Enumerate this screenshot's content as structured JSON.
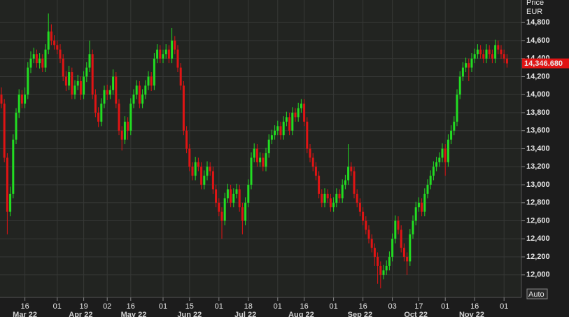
{
  "chart_data": {
    "type": "candlestick",
    "axis_title": "Price",
    "unit": "EUR",
    "up_color": "#22dd22",
    "down_color": "#e01414",
    "ylim": [
      11750,
      15050
    ],
    "yticks": [
      {
        "value": 12000,
        "label": "12,000"
      },
      {
        "value": 12200,
        "label": "12,200"
      },
      {
        "value": 12400,
        "label": "12,400"
      },
      {
        "value": 12600,
        "label": "12,600"
      },
      {
        "value": 12800,
        "label": "12,800"
      },
      {
        "value": 13000,
        "label": "13,000"
      },
      {
        "value": 13200,
        "label": "13,200"
      },
      {
        "value": 13400,
        "label": "13,400"
      },
      {
        "value": 13600,
        "label": "13,600"
      },
      {
        "value": 13800,
        "label": "13,800"
      },
      {
        "value": 14000,
        "label": "14,000"
      },
      {
        "value": 14200,
        "label": "14,200"
      },
      {
        "value": 14400,
        "label": "14,400"
      },
      {
        "value": 14600,
        "label": "14,600"
      },
      {
        "value": 14800,
        "label": "14,800"
      }
    ],
    "grid": true,
    "last_price": 14346.68,
    "last_price_label": "14,346.680",
    "scale_button": "Auto",
    "categories": [
      null,
      null,
      null,
      null,
      null,
      null,
      null,
      null,
      "16",
      null,
      null,
      null,
      null,
      null,
      null,
      null,
      null,
      null,
      null,
      "01",
      null,
      null,
      null,
      null,
      null,
      null,
      null,
      null,
      "19",
      null,
      null,
      null,
      null,
      null,
      null,
      null,
      "02",
      null,
      null,
      null,
      null,
      null,
      null,
      null,
      "16",
      null,
      null,
      null,
      null,
      null,
      null,
      null,
      null,
      null,
      null,
      "01",
      null,
      null,
      null,
      null,
      null,
      null,
      null,
      null,
      "15",
      null,
      null,
      null,
      null,
      null,
      null,
      null,
      null,
      null,
      "01",
      null,
      null,
      null,
      null,
      null,
      null,
      null,
      null,
      null,
      "18",
      null,
      null,
      null,
      null,
      null,
      null,
      null,
      null,
      null,
      "01",
      null,
      null,
      null,
      null,
      null,
      null,
      null,
      null,
      "16",
      null,
      null,
      null,
      null,
      null,
      null,
      null,
      null,
      null,
      "01",
      null,
      null,
      null,
      null,
      null,
      null,
      null,
      null,
      null,
      "16",
      null,
      null,
      null,
      null,
      null,
      null,
      null,
      null,
      null,
      "03",
      null,
      null,
      null,
      null,
      null,
      null,
      null,
      null,
      "17",
      null,
      null,
      null,
      null,
      null,
      null,
      null,
      null,
      "01",
      null,
      null,
      null,
      null,
      null,
      null,
      null,
      null,
      null,
      "16",
      null,
      null,
      null,
      null,
      null,
      null,
      null,
      null,
      null,
      "01",
      null
    ],
    "months": [
      {
        "label": "Mar 22",
        "category": 8
      },
      {
        "label": "Apr 22",
        "category": 27
      },
      {
        "label": "May 22",
        "category": 45
      },
      {
        "label": "Jun 22",
        "category": 64
      },
      {
        "label": "Jul 22",
        "category": 83
      },
      {
        "label": "Aug 22",
        "category": 102
      },
      {
        "label": "Sep 22",
        "category": 122
      },
      {
        "label": "Oct 22",
        "category": 141
      },
      {
        "label": "Nov 22",
        "category": 160
      }
    ],
    "ohlc": [
      [
        14000,
        14080,
        13850,
        13900
      ],
      [
        13900,
        13950,
        13250,
        13300
      ],
      [
        13300,
        13350,
        12450,
        12700
      ],
      [
        12700,
        12980,
        12650,
        12900
      ],
      [
        12900,
        13560,
        12850,
        13500
      ],
      [
        13500,
        13850,
        13450,
        13800
      ],
      [
        13800,
        14060,
        13740,
        14000
      ],
      [
        14000,
        14050,
        13850,
        13900
      ],
      [
        13900,
        14080,
        13850,
        14000
      ],
      [
        14000,
        14360,
        13950,
        14300
      ],
      [
        14300,
        14480,
        14240,
        14400
      ],
      [
        14400,
        14520,
        14350,
        14450
      ],
      [
        14450,
        14500,
        14300,
        14350
      ],
      [
        14350,
        14460,
        14290,
        14400
      ],
      [
        14400,
        14450,
        14250,
        14300
      ],
      [
        14300,
        14560,
        14250,
        14500
      ],
      [
        14500,
        14900,
        14450,
        14700
      ],
      [
        14700,
        14780,
        14550,
        14600
      ],
      [
        14600,
        14660,
        14500,
        14550
      ],
      [
        14550,
        14600,
        14450,
        14500
      ],
      [
        14500,
        14560,
        14350,
        14400
      ],
      [
        14400,
        14450,
        14150,
        14200
      ],
      [
        14200,
        14260,
        14040,
        14100
      ],
      [
        14100,
        14320,
        14050,
        14250
      ],
      [
        14250,
        14300,
        13950,
        14000
      ],
      [
        14000,
        14160,
        13950,
        14100
      ],
      [
        14100,
        14220,
        14050,
        14150
      ],
      [
        14150,
        14200,
        13940,
        14000
      ],
      [
        14000,
        14260,
        13950,
        14200
      ],
      [
        14200,
        14360,
        14140,
        14300
      ],
      [
        14300,
        14600,
        14250,
        14450
      ],
      [
        14450,
        14500,
        13950,
        14000
      ],
      [
        14000,
        14060,
        13750,
        13800
      ],
      [
        13800,
        13860,
        13640,
        13700
      ],
      [
        13700,
        13960,
        13650,
        13900
      ],
      [
        13900,
        14100,
        13850,
        14050
      ],
      [
        14050,
        14110,
        13940,
        14000
      ],
      [
        14000,
        14100,
        13950,
        14050
      ],
      [
        14050,
        14280,
        14000,
        14200
      ],
      [
        14200,
        14250,
        13850,
        13900
      ],
      [
        13900,
        13950,
        13550,
        13600
      ],
      [
        13600,
        13650,
        13380,
        13500
      ],
      [
        13500,
        13760,
        13450,
        13700
      ],
      [
        13700,
        13750,
        13500,
        13600
      ],
      [
        13600,
        13960,
        13550,
        13900
      ],
      [
        13900,
        14060,
        13850,
        14000
      ],
      [
        14000,
        14160,
        13950,
        14100
      ],
      [
        14100,
        14150,
        13850,
        13900
      ],
      [
        13900,
        14060,
        13850,
        14000
      ],
      [
        14000,
        14160,
        13950,
        14100
      ],
      [
        14100,
        14260,
        14050,
        14200
      ],
      [
        14200,
        14250,
        14040,
        14100
      ],
      [
        14100,
        14460,
        14050,
        14400
      ],
      [
        14400,
        14560,
        14350,
        14500
      ],
      [
        14500,
        14550,
        14350,
        14400
      ],
      [
        14400,
        14500,
        14350,
        14450
      ],
      [
        14450,
        14560,
        14400,
        14500
      ],
      [
        14500,
        14550,
        14350,
        14400
      ],
      [
        14400,
        14740,
        14350,
        14600
      ],
      [
        14600,
        14650,
        14450,
        14500
      ],
      [
        14500,
        14550,
        14250,
        14300
      ],
      [
        14300,
        14350,
        14050,
        14100
      ],
      [
        14100,
        14150,
        13550,
        13600
      ],
      [
        13600,
        13650,
        13350,
        13400
      ],
      [
        13400,
        13450,
        13150,
        13200
      ],
      [
        13200,
        13250,
        13050,
        13100
      ],
      [
        13100,
        13310,
        13050,
        13250
      ],
      [
        13250,
        13300,
        13150,
        13200
      ],
      [
        13200,
        13250,
        12950,
        13000
      ],
      [
        13000,
        13160,
        12950,
        13100
      ],
      [
        13100,
        13260,
        13050,
        13200
      ],
      [
        13200,
        13250,
        13100,
        13150
      ],
      [
        13150,
        13200,
        12900,
        12950
      ],
      [
        12950,
        13000,
        12750,
        12800
      ],
      [
        12800,
        12850,
        12650,
        12700
      ],
      [
        12700,
        12750,
        12400,
        12600
      ],
      [
        12600,
        12910,
        12550,
        12850
      ],
      [
        12850,
        13010,
        12800,
        12950
      ],
      [
        12950,
        13000,
        12750,
        12800
      ],
      [
        12800,
        12960,
        12750,
        12900
      ],
      [
        12900,
        13010,
        12850,
        12950
      ],
      [
        12950,
        13000,
        12700,
        12750
      ],
      [
        12750,
        12800,
        12450,
        12600
      ],
      [
        12600,
        12860,
        12550,
        12800
      ],
      [
        12800,
        13060,
        12750,
        13000
      ],
      [
        13000,
        13360,
        12950,
        13300
      ],
      [
        13300,
        13460,
        13250,
        13400
      ],
      [
        13400,
        13450,
        13200,
        13250
      ],
      [
        13250,
        13360,
        13200,
        13300
      ],
      [
        13300,
        13350,
        13150,
        13200
      ],
      [
        13200,
        13410,
        13150,
        13350
      ],
      [
        13350,
        13560,
        13300,
        13500
      ],
      [
        13500,
        13610,
        13450,
        13550
      ],
      [
        13550,
        13660,
        13500,
        13600
      ],
      [
        13600,
        13710,
        13550,
        13650
      ],
      [
        13650,
        13700,
        13500,
        13550
      ],
      [
        13550,
        13760,
        13500,
        13700
      ],
      [
        13700,
        13810,
        13650,
        13750
      ],
      [
        13750,
        13800,
        13550,
        13600
      ],
      [
        13600,
        13860,
        13550,
        13800
      ],
      [
        13800,
        13850,
        13700,
        13750
      ],
      [
        13750,
        13910,
        13700,
        13850
      ],
      [
        13850,
        13950,
        13800,
        13900
      ],
      [
        13900,
        13950,
        13650,
        13700
      ],
      [
        13700,
        13750,
        13350,
        13400
      ],
      [
        13400,
        13450,
        13250,
        13300
      ],
      [
        13300,
        13350,
        13150,
        13200
      ],
      [
        13200,
        13250,
        13050,
        13100
      ],
      [
        13100,
        13150,
        12850,
        12900
      ],
      [
        12900,
        12950,
        12750,
        12800
      ],
      [
        12800,
        12960,
        12750,
        12900
      ],
      [
        12900,
        12950,
        12800,
        12850
      ],
      [
        12850,
        12900,
        12700,
        12750
      ],
      [
        12750,
        12860,
        12700,
        12800
      ],
      [
        12800,
        12960,
        12750,
        12900
      ],
      [
        12900,
        12950,
        12800,
        12850
      ],
      [
        12850,
        13060,
        12800,
        13000
      ],
      [
        13000,
        13110,
        12950,
        13050
      ],
      [
        13050,
        13450,
        13000,
        13200
      ],
      [
        13200,
        13250,
        13100,
        13150
      ],
      [
        13150,
        13200,
        12850,
        12900
      ],
      [
        12900,
        12950,
        12750,
        12800
      ],
      [
        12800,
        12850,
        12650,
        12700
      ],
      [
        12700,
        12750,
        12550,
        12600
      ],
      [
        12600,
        12650,
        12450,
        12500
      ],
      [
        12500,
        12550,
        12350,
        12400
      ],
      [
        12400,
        12450,
        12250,
        12300
      ],
      [
        12300,
        12350,
        12100,
        12200
      ],
      [
        12200,
        12250,
        11900,
        12100
      ],
      [
        12100,
        12150,
        11850,
        12000
      ],
      [
        12000,
        12110,
        11950,
        12050
      ],
      [
        12050,
        12160,
        12000,
        12100
      ],
      [
        12100,
        12260,
        12050,
        12200
      ],
      [
        12200,
        12460,
        12150,
        12400
      ],
      [
        12400,
        12660,
        12350,
        12600
      ],
      [
        12600,
        12650,
        12450,
        12500
      ],
      [
        12500,
        12550,
        12250,
        12300
      ],
      [
        12300,
        12350,
        12150,
        12200
      ],
      [
        12200,
        12250,
        12000,
        12150
      ],
      [
        12150,
        12510,
        12100,
        12450
      ],
      [
        12450,
        12660,
        12400,
        12600
      ],
      [
        12600,
        12810,
        12550,
        12750
      ],
      [
        12750,
        12860,
        12700,
        12800
      ],
      [
        12800,
        12850,
        12650,
        12700
      ],
      [
        12700,
        12960,
        12650,
        12900
      ],
      [
        12900,
        13060,
        12850,
        13000
      ],
      [
        13000,
        13160,
        12950,
        13100
      ],
      [
        13100,
        13260,
        13050,
        13200
      ],
      [
        13200,
        13310,
        13150,
        13250
      ],
      [
        13250,
        13360,
        13200,
        13300
      ],
      [
        13300,
        13460,
        13250,
        13400
      ],
      [
        13400,
        13450,
        13100,
        13250
      ],
      [
        13250,
        13560,
        13200,
        13500
      ],
      [
        13500,
        13660,
        13450,
        13600
      ],
      [
        13600,
        13760,
        13550,
        13700
      ],
      [
        13700,
        14060,
        13650,
        14000
      ],
      [
        14000,
        14260,
        13950,
        14200
      ],
      [
        14200,
        14360,
        14150,
        14300
      ],
      [
        14300,
        14410,
        14250,
        14350
      ],
      [
        14350,
        14400,
        14150,
        14300
      ],
      [
        14300,
        14460,
        14250,
        14400
      ],
      [
        14400,
        14510,
        14350,
        14450
      ],
      [
        14450,
        14560,
        14400,
        14500
      ],
      [
        14500,
        14550,
        14400,
        14450
      ],
      [
        14450,
        14500,
        14350,
        14400
      ],
      [
        14400,
        14560,
        14350,
        14500
      ],
      [
        14500,
        14550,
        14400,
        14450
      ],
      [
        14450,
        14500,
        14350,
        14400
      ],
      [
        14400,
        14610,
        14350,
        14550
      ],
      [
        14550,
        14600,
        14450,
        14500
      ],
      [
        14500,
        14550,
        14400,
        14450
      ],
      [
        14450,
        14500,
        14350,
        14400
      ],
      [
        14400,
        14450,
        14300,
        14346.68
      ]
    ]
  }
}
